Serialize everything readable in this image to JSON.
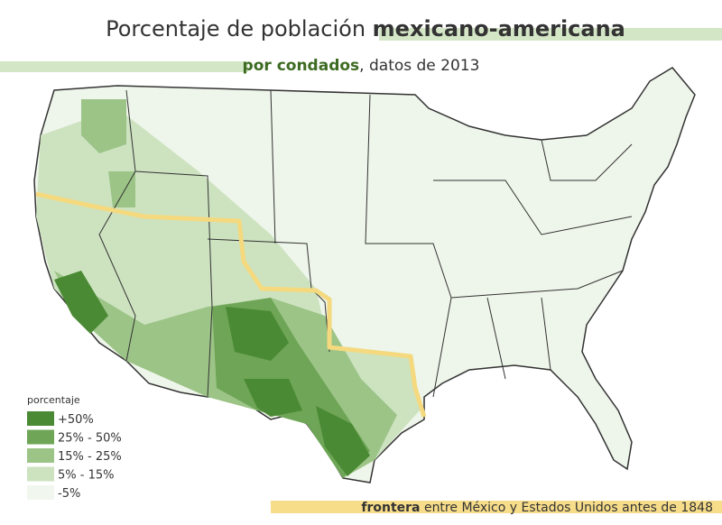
{
  "title": {
    "regular": "Porcentaje de población",
    "bold": "mexicano-americana"
  },
  "subtitle": {
    "bold": "por condados",
    "regular": ", datos de 2013"
  },
  "legend": {
    "title": "porcentaje",
    "items": [
      {
        "label": "+50%",
        "color": "#4b8a34"
      },
      {
        "label": "25% - 50%",
        "color": "#6ea556"
      },
      {
        "label": "15% - 25%",
        "color": "#9cc487"
      },
      {
        "label": "5% - 15%",
        "color": "#cde3c0"
      },
      {
        "label": "-5%",
        "color": "#f1f6ee"
      }
    ]
  },
  "note": {
    "bold": "frontera",
    "regular": " entre México y Estados Unidos antes de 1848"
  }
}
